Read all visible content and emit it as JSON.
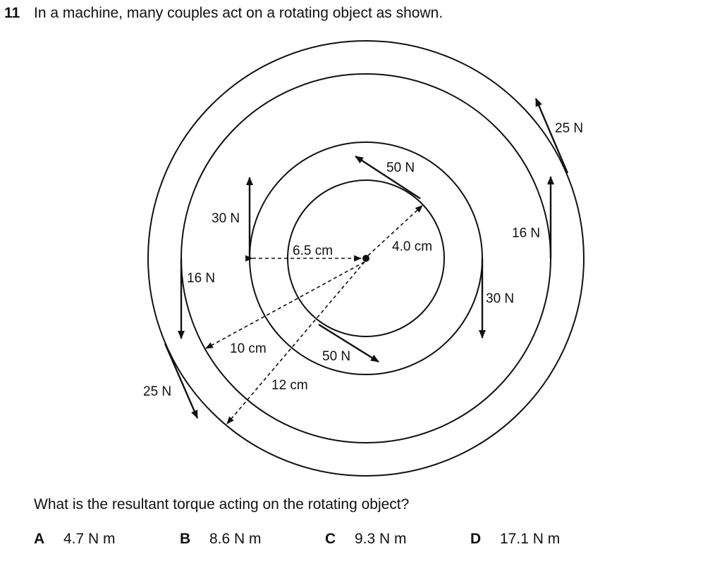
{
  "question": {
    "number": "11",
    "text": "In a machine, many couples act on a rotating object as shown.",
    "prompt": "What is the resultant torque acting on the rotating object?"
  },
  "diagram": {
    "labels": {
      "f25_right": "25 N",
      "f50_top": "50 N",
      "f30_left": "30 N",
      "f16_right": "16 N",
      "r65": "6.5 cm",
      "r40": "4.0 cm",
      "f16_left": "16 N",
      "f30_right": "30 N",
      "r10": "10 cm",
      "f50_bottom": "50 N",
      "r12": "12 cm",
      "f25_left": "25 N"
    }
  },
  "options": [
    {
      "letter": "A",
      "value": "4.7 N m"
    },
    {
      "letter": "B",
      "value": "8.6 N m"
    },
    {
      "letter": "C",
      "value": "9.3 N m"
    },
    {
      "letter": "D",
      "value": "17.1 N m"
    }
  ]
}
